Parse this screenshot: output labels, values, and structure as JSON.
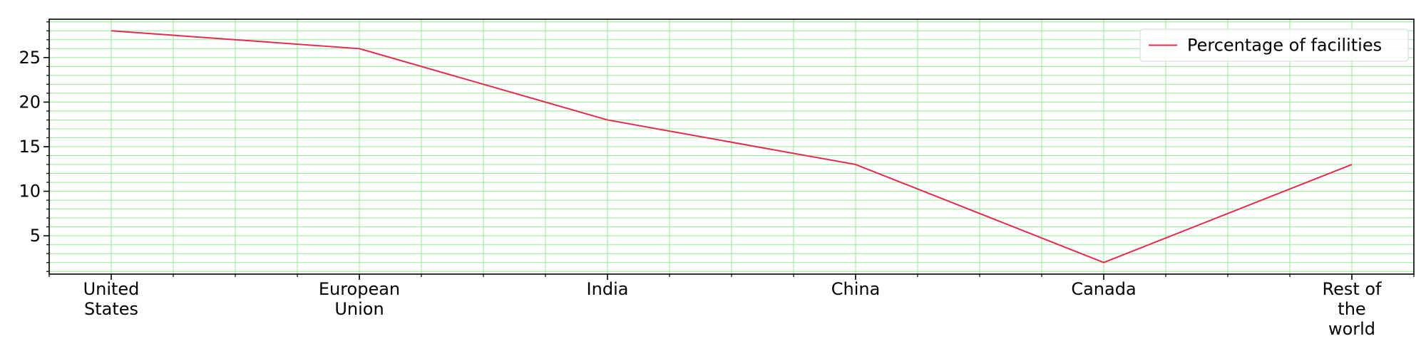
{
  "chart_data": {
    "type": "line",
    "title": "",
    "xlabel": "",
    "ylabel": "",
    "categories": [
      [
        "United",
        "States"
      ],
      [
        "European",
        "Union"
      ],
      [
        "India"
      ],
      [
        "China"
      ],
      [
        "Canada"
      ],
      [
        "Rest of",
        "the",
        "world"
      ]
    ],
    "series": [
      {
        "name": "Percentage of facilities",
        "values": [
          28,
          26,
          18,
          13,
          2,
          13
        ],
        "color": "#e8294f"
      }
    ],
    "ylim": [
      0.7,
      29.3
    ],
    "yticks": [
      5,
      10,
      15,
      20,
      25
    ],
    "grid": true,
    "grid_color": "#90ee90",
    "minor_grid": true,
    "legend": {
      "position": "top-right"
    }
  }
}
